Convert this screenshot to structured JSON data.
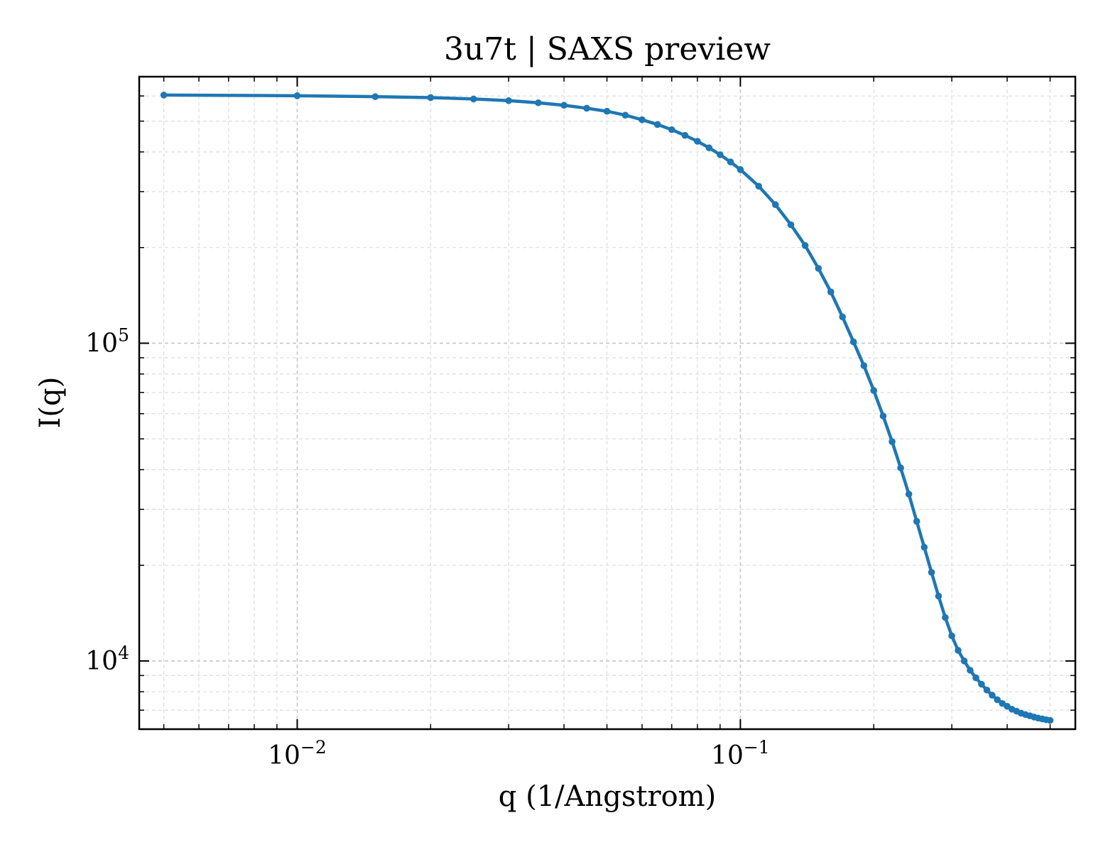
{
  "chart_data": {
    "type": "line",
    "title": "3u7t | SAXS preview",
    "xlabel": "q (1/Angstrom)",
    "ylabel": "I(q)",
    "xscale": "log",
    "yscale": "log",
    "xlim": [
      0.0044,
      0.57
    ],
    "ylim": [
      6100,
      690000
    ],
    "grid": true,
    "legend": "none",
    "color": "#1f77b4",
    "x_major_ticks": [
      0.01,
      0.1
    ],
    "x_tick_labels": [
      {
        "base": "10",
        "exp": "−2"
      },
      {
        "base": "10",
        "exp": "−1"
      }
    ],
    "y_major_ticks": [
      10000,
      100000
    ],
    "y_tick_labels": [
      {
        "base": "10",
        "exp": "4"
      },
      {
        "base": "10",
        "exp": "5"
      }
    ],
    "series": [
      {
        "points": [
          [
            0.005,
            604000
          ],
          [
            0.01,
            601000
          ],
          [
            0.015,
            597000
          ],
          [
            0.02,
            593000
          ],
          [
            0.025,
            587000
          ],
          [
            0.03,
            580000
          ],
          [
            0.035,
            571000
          ],
          [
            0.04,
            561000
          ],
          [
            0.045,
            549000
          ],
          [
            0.05,
            537000
          ],
          [
            0.055,
            522000
          ],
          [
            0.06,
            505000
          ],
          [
            0.065,
            488000
          ],
          [
            0.07,
            470000
          ],
          [
            0.075,
            451000
          ],
          [
            0.08,
            432000
          ],
          [
            0.085,
            412000
          ],
          [
            0.09,
            392000
          ],
          [
            0.095,
            372000
          ],
          [
            0.1,
            352000
          ],
          [
            0.11,
            312000
          ],
          [
            0.12,
            273000
          ],
          [
            0.13,
            236000
          ],
          [
            0.14,
            203000
          ],
          [
            0.15,
            172000
          ],
          [
            0.16,
            145000
          ],
          [
            0.17,
            121000
          ],
          [
            0.18,
            101000
          ],
          [
            0.19,
            85000
          ],
          [
            0.2,
            71000
          ],
          [
            0.21,
            59000
          ],
          [
            0.22,
            49000
          ],
          [
            0.23,
            40500
          ],
          [
            0.24,
            33500
          ],
          [
            0.25,
            27500
          ],
          [
            0.26,
            22800
          ],
          [
            0.27,
            19000
          ],
          [
            0.28,
            16000
          ],
          [
            0.29,
            13700
          ],
          [
            0.3,
            12000
          ],
          [
            0.31,
            10800
          ],
          [
            0.32,
            10000
          ],
          [
            0.33,
            9350
          ],
          [
            0.34,
            8850
          ],
          [
            0.35,
            8450
          ],
          [
            0.36,
            8100
          ],
          [
            0.37,
            7800
          ],
          [
            0.38,
            7550
          ],
          [
            0.39,
            7350
          ],
          [
            0.4,
            7200
          ],
          [
            0.41,
            7050
          ],
          [
            0.42,
            6950
          ],
          [
            0.43,
            6850
          ],
          [
            0.44,
            6780
          ],
          [
            0.45,
            6720
          ],
          [
            0.46,
            6660
          ],
          [
            0.47,
            6610
          ],
          [
            0.48,
            6570
          ],
          [
            0.49,
            6530
          ],
          [
            0.5,
            6500
          ]
        ]
      }
    ]
  }
}
